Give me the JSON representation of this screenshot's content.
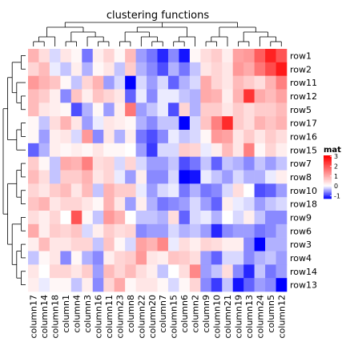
{
  "chart_data": {
    "type": "heatmap",
    "title": "clustering functions",
    "rows": [
      "row1",
      "row2",
      "row11",
      "row12",
      "row5",
      "row17",
      "row16",
      "row15",
      "row7",
      "row8",
      "row10",
      "row18",
      "row9",
      "row6",
      "row3",
      "row4",
      "row14",
      "row13"
    ],
    "columns": [
      "column17",
      "column14",
      "column18",
      "column1",
      "column4",
      "column3",
      "column16",
      "column11",
      "column23",
      "column8",
      "column22",
      "column20",
      "column7",
      "column15",
      "column6",
      "column2",
      "column9",
      "column10",
      "column21",
      "column19",
      "column13",
      "column24",
      "column5",
      "column12"
    ],
    "values": [
      [
        0.9,
        0.4,
        -0.2,
        0.3,
        0.1,
        -0.7,
        0.2,
        0.5,
        0.1,
        0.8,
        -0.5,
        -0.7,
        -1.1,
        -0.6,
        -1.2,
        0.1,
        0.4,
        0.6,
        0.2,
        1.1,
        1.2,
        1.9,
        2.6,
        2.0
      ],
      [
        0.5,
        0.8,
        -0.1,
        -0.3,
        0.2,
        -0.4,
        0.1,
        0.3,
        -0.3,
        0.6,
        -0.4,
        -0.6,
        -0.9,
        -0.4,
        -0.7,
        -0.3,
        0.3,
        0.5,
        0.3,
        1.2,
        1.0,
        1.6,
        2.1,
        2.7
      ],
      [
        1.2,
        0.9,
        0.7,
        0.1,
        -0.3,
        0.5,
        0.9,
        -0.5,
        -0.2,
        -1.3,
        -0.2,
        -0.5,
        -0.2,
        -0.8,
        -0.4,
        -0.2,
        1.0,
        0.5,
        0.3,
        0.8,
        0.6,
        0.4,
        0.9,
        1.5
      ],
      [
        0.8,
        0.6,
        0.2,
        -0.6,
        0.7,
        0.2,
        0.7,
        0.5,
        0.3,
        -0.8,
        -0.1,
        -0.6,
        -0.1,
        -0.1,
        -0.3,
        -0.4,
        1.0,
        0.9,
        0.2,
        0.9,
        2.4,
        1.0,
        0.8,
        1.1
      ],
      [
        0.8,
        0.3,
        0.2,
        0.1,
        -0.9,
        -0.4,
        0.1,
        -0.5,
        0.2,
        1.6,
        -0.5,
        -0.3,
        -0.1,
        -0.9,
        0.5,
        -0.4,
        0.6,
        0.6,
        0.3,
        0.6,
        0.4,
        0.6,
        0.6,
        0.8
      ],
      [
        0.1,
        -0.3,
        0.4,
        0.9,
        0.3,
        -0.5,
        -0.1,
        0.3,
        0.2,
        0.1,
        -0.4,
        -0.6,
        -0.3,
        -0.3,
        -1.3,
        -0.2,
        0.7,
        1.5,
        2.5,
        0.6,
        0.4,
        0.9,
        0.7,
        0.9
      ],
      [
        0.1,
        -0.5,
        0.2,
        0.3,
        -0.2,
        1.2,
        -0.6,
        0.3,
        -0.4,
        0.2,
        -0.7,
        -0.9,
        -0.6,
        -0.1,
        -0.3,
        -0.2,
        0.1,
        1.2,
        1.1,
        0.3,
        0.6,
        0.3,
        0.6,
        0.4
      ],
      [
        -0.8,
        -0.4,
        0.2,
        0.1,
        0.2,
        0.1,
        0.3,
        0.1,
        0.1,
        0.0,
        -0.5,
        -1.0,
        -0.2,
        -0.2,
        0.6,
        0.5,
        -0.1,
        0.2,
        0.8,
        0.3,
        1.5,
        0.1,
        0.5,
        0.2
      ],
      [
        0.6,
        0.1,
        -0.3,
        1.0,
        0.9,
        1.5,
        0.4,
        0.5,
        -0.2,
        0.5,
        -0.2,
        -0.5,
        -0.5,
        -0.3,
        -0.9,
        -0.7,
        -0.3,
        -0.8,
        -0.3,
        -0.4,
        -0.6,
        -0.3,
        -0.5,
        -0.3
      ],
      [
        0.8,
        0.4,
        -0.3,
        0.6,
        0.6,
        0.9,
        0.3,
        0.5,
        -0.1,
        -0.5,
        0.2,
        -0.6,
        -0.6,
        -0.2,
        -1.4,
        -1.2,
        -0.1,
        -0.3,
        -0.5,
        -0.2,
        -0.4,
        -0.4,
        -0.1,
        0.2
      ],
      [
        0.5,
        0.3,
        0.6,
        0.8,
        0.3,
        0.8,
        -0.3,
        0.9,
        0.6,
        0.6,
        -0.1,
        -0.5,
        -0.2,
        -0.1,
        -0.7,
        -0.4,
        -0.7,
        -0.6,
        -0.2,
        0.4,
        0.0,
        -0.9,
        -0.8,
        -0.5
      ],
      [
        0.7,
        0.9,
        0.3,
        0.5,
        0.5,
        0.3,
        0.1,
        0.9,
        0.3,
        -0.5,
        0.2,
        -0.4,
        -0.7,
        -0.6,
        -0.5,
        -0.2,
        -0.5,
        -0.8,
        0.2,
        -0.1,
        -0.2,
        -0.5,
        -0.3,
        -0.2
      ],
      [
        0.4,
        0.2,
        0.5,
        0.0,
        2.0,
        0.1,
        -0.3,
        1.2,
        0.9,
        0.0,
        -0.3,
        -0.3,
        -0.4,
        0.4,
        -0.8,
        -0.2,
        -0.1,
        -0.4,
        0.0,
        -0.2,
        0.2,
        -0.3,
        -0.6,
        -0.6
      ],
      [
        1.0,
        0.2,
        0.6,
        0.5,
        0.7,
        -0.2,
        0.2,
        0.6,
        0.4,
        0.5,
        -0.6,
        -0.5,
        -0.5,
        -0.2,
        -0.4,
        -0.3,
        -0.5,
        -1.1,
        -0.6,
        -0.5,
        -0.5,
        -0.7,
        -0.6,
        -0.4
      ],
      [
        0.2,
        0.8,
        0.3,
        0.3,
        0.5,
        0.5,
        -0.3,
        0.7,
        0.1,
        -0.2,
        1.1,
        0.9,
        1.4,
        -0.1,
        0.4,
        0.2,
        0.5,
        0.4,
        0.2,
        0.2,
        -0.6,
        -1.3,
        -0.4,
        -0.4
      ],
      [
        -0.3,
        0.1,
        0.3,
        -0.6,
        0.1,
        -0.4,
        -0.6,
        0.2,
        0.5,
        0.6,
        1.2,
        0.3,
        0.2,
        0.7,
        0.6,
        0.4,
        -0.5,
        -0.8,
        -0.2,
        -0.2,
        -0.6,
        -0.4,
        -0.3,
        -0.5
      ],
      [
        0.3,
        0.0,
        0.5,
        0.5,
        0.3,
        0.6,
        -0.5,
        0.8,
        0.5,
        0.8,
        0.4,
        0.2,
        -0.3,
        0.0,
        0.4,
        1.4,
        -0.5,
        -0.3,
        0.4,
        -0.6,
        -1.1,
        -0.3,
        -0.7,
        -0.5
      ],
      [
        0.2,
        -0.1,
        0.1,
        0.1,
        -0.3,
        0.2,
        -0.6,
        0.5,
        1.0,
        0.1,
        0.3,
        0.3,
        0.1,
        -0.2,
        0.1,
        0.5,
        -0.6,
        -1.0,
        -0.3,
        -1.2,
        -0.8,
        -0.5,
        -0.6,
        -1.6
      ]
    ],
    "legend": {
      "title": "mat",
      "ticks": [
        3,
        2,
        1,
        0,
        -1
      ],
      "min": -1.3,
      "max": 3.1,
      "placement": "right"
    },
    "colors": {
      "low": "#0000FF",
      "mid": "#FFFFFF",
      "high": "#FF0000"
    },
    "row_dendrogram": true,
    "column_dendrogram": true
  }
}
